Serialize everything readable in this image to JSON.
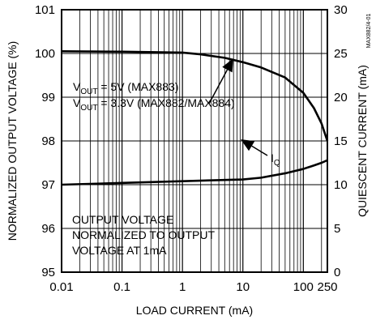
{
  "chart_data": {
    "type": "line",
    "x_axis": {
      "label": "LOAD CURRENT (mA)",
      "scale": "log",
      "range": [
        0.01,
        250
      ],
      "ticks": [
        0.01,
        0.1,
        1,
        10,
        100,
        250
      ],
      "tick_labels": [
        "0.01",
        "0.1",
        "1",
        "10",
        "100",
        "250"
      ]
    },
    "y_axis_left": {
      "label": "NORMALIZED OUTPUT VOLTAGE (%)",
      "range": [
        95,
        101
      ],
      "ticks": [
        95,
        96,
        97,
        98,
        99,
        100,
        101
      ],
      "tick_labels": [
        "95",
        "96",
        "97",
        "98",
        "99",
        "100",
        "101"
      ]
    },
    "y_axis_right": {
      "label": "QUIESCENT CURRENT (mA)",
      "range": [
        0,
        30
      ],
      "ticks": [
        0,
        5,
        10,
        15,
        20,
        25,
        30
      ],
      "tick_labels": [
        "0",
        "5",
        "10",
        "15",
        "20",
        "25",
        "30"
      ]
    },
    "grid": true,
    "series": [
      {
        "axis": "left",
        "x": [
          0.01,
          0.1,
          1,
          2,
          5,
          10,
          20,
          50,
          100,
          150,
          200,
          250
        ],
        "y": [
          100.05,
          100.04,
          100.02,
          99.98,
          99.9,
          99.8,
          99.68,
          99.45,
          99.1,
          98.75,
          98.4,
          98.0
        ]
      },
      {
        "axis": "right",
        "x": [
          0.01,
          0.1,
          1,
          10,
          20,
          50,
          100,
          150,
          200,
          250
        ],
        "y": [
          10.0,
          10.2,
          10.4,
          10.6,
          10.8,
          11.3,
          11.8,
          12.2,
          12.5,
          12.8
        ]
      }
    ],
    "annotations": {
      "vout_line1_prefix": "V",
      "vout_line1_sub": "OUT",
      "vout_line1_rest": " = 5V (MAX883)",
      "vout_line2_prefix": "V",
      "vout_line2_sub": "OUT",
      "vout_line2_rest": " = 3.3V (MAX882/MAX884)",
      "iq_prefix": "I",
      "iq_sub": "Q",
      "note_lines": [
        "OUTPUT VOLTAGE",
        "NORMALIZED TO OUTPUT",
        "VOLTAGE AT 1mA"
      ],
      "figure_id": "MAX882/4-01"
    }
  }
}
